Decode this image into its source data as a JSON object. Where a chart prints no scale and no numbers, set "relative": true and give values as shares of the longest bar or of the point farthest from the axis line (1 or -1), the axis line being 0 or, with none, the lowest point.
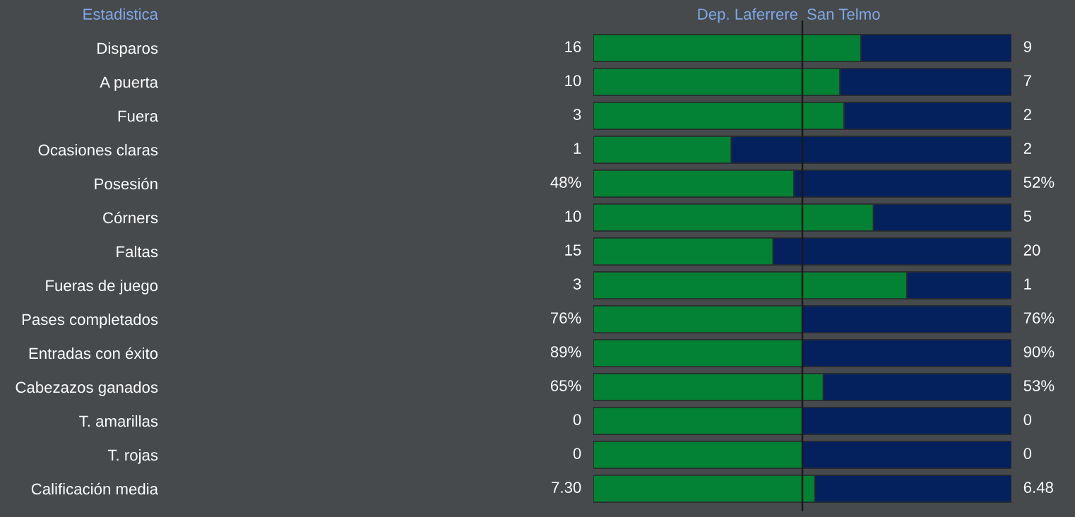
{
  "chart_data": {
    "type": "bar",
    "orientation": "horizontal",
    "stacked": true,
    "relative": true,
    "title": "Estadistica",
    "legend": "top",
    "grid": false,
    "categories": [
      "Disparos",
      "A puerta",
      "Fuera",
      "Ocasiones claras",
      "Posesión",
      "Córners",
      "Faltas",
      "Fueras de juego",
      "Pases completados",
      "Entradas con éxito",
      "Cabezazos ganados",
      "T. amarillas",
      "T. rojas",
      "Calificación media"
    ],
    "series": [
      {
        "name": "Dep. Laferrere",
        "color": "#038134",
        "values": [
          0.64,
          0.59,
          0.6,
          0.33,
          0.48,
          0.67,
          0.43,
          0.75,
          0.5,
          0.5,
          0.55,
          0.5,
          0.5,
          0.53
        ]
      },
      {
        "name": "San Telmo",
        "color": "#04215e",
        "values": [
          0.36,
          0.41,
          0.4,
          0.67,
          0.52,
          0.33,
          0.57,
          0.25,
          0.5,
          0.5,
          0.45,
          0.5,
          0.5,
          0.47
        ]
      }
    ],
    "annotations": [
      "16",
      "9",
      "10",
      "7",
      "3",
      "2",
      "1",
      "2",
      "48%",
      "52%",
      "10",
      "5",
      "15",
      "20",
      "3",
      "1",
      "76%",
      "76%",
      "89%",
      "90%",
      "65%",
      "53%",
      "0",
      "0",
      "0",
      "0",
      "7.30",
      "6.48"
    ],
    "ref_lines": [
      {
        "axis": "x",
        "value": 0.5,
        "color": "#1a1a1a"
      }
    ]
  }
}
